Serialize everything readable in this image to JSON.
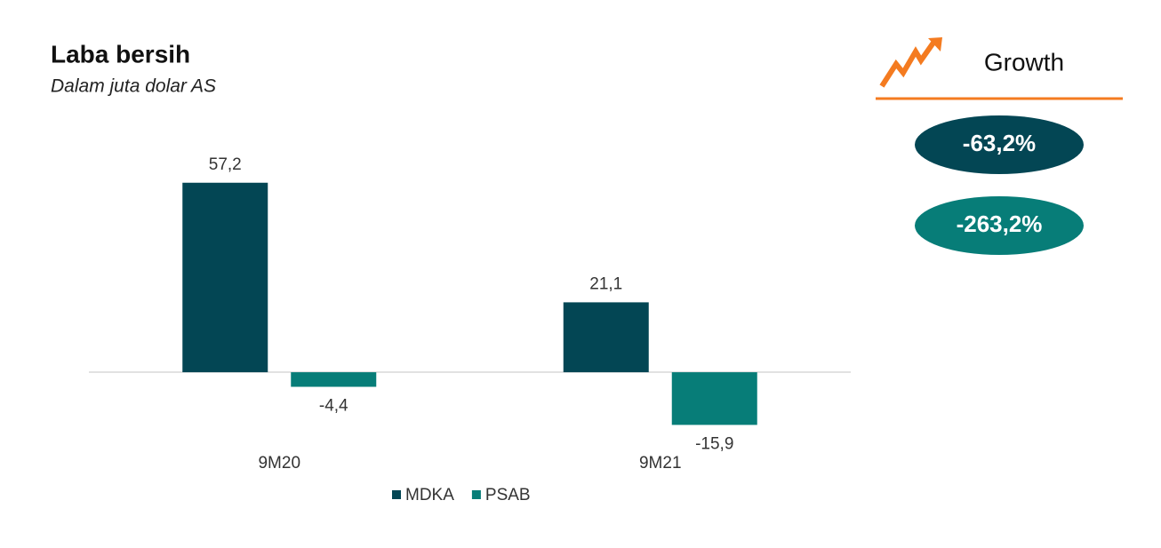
{
  "chart_data": {
    "type": "bar",
    "title": "Laba bersih",
    "subtitle": "Dalam juta dolar AS",
    "categories": [
      "9M20",
      "9M21"
    ],
    "series": [
      {
        "name": "MDKA",
        "color": "#034654",
        "values": [
          57.2,
          21.1
        ],
        "value_labels": [
          "57,2",
          "21,1"
        ]
      },
      {
        "name": "PSAB",
        "color": "#077d78",
        "values": [
          -4.4,
          -15.9
        ],
        "value_labels": [
          "-4,4",
          "-15,9"
        ]
      }
    ],
    "ylim": [
      -30,
      70
    ],
    "grid": false,
    "legend": "bottom"
  },
  "growth": {
    "title": "Growth",
    "items": [
      "-63,2%",
      "-263,2%"
    ]
  }
}
